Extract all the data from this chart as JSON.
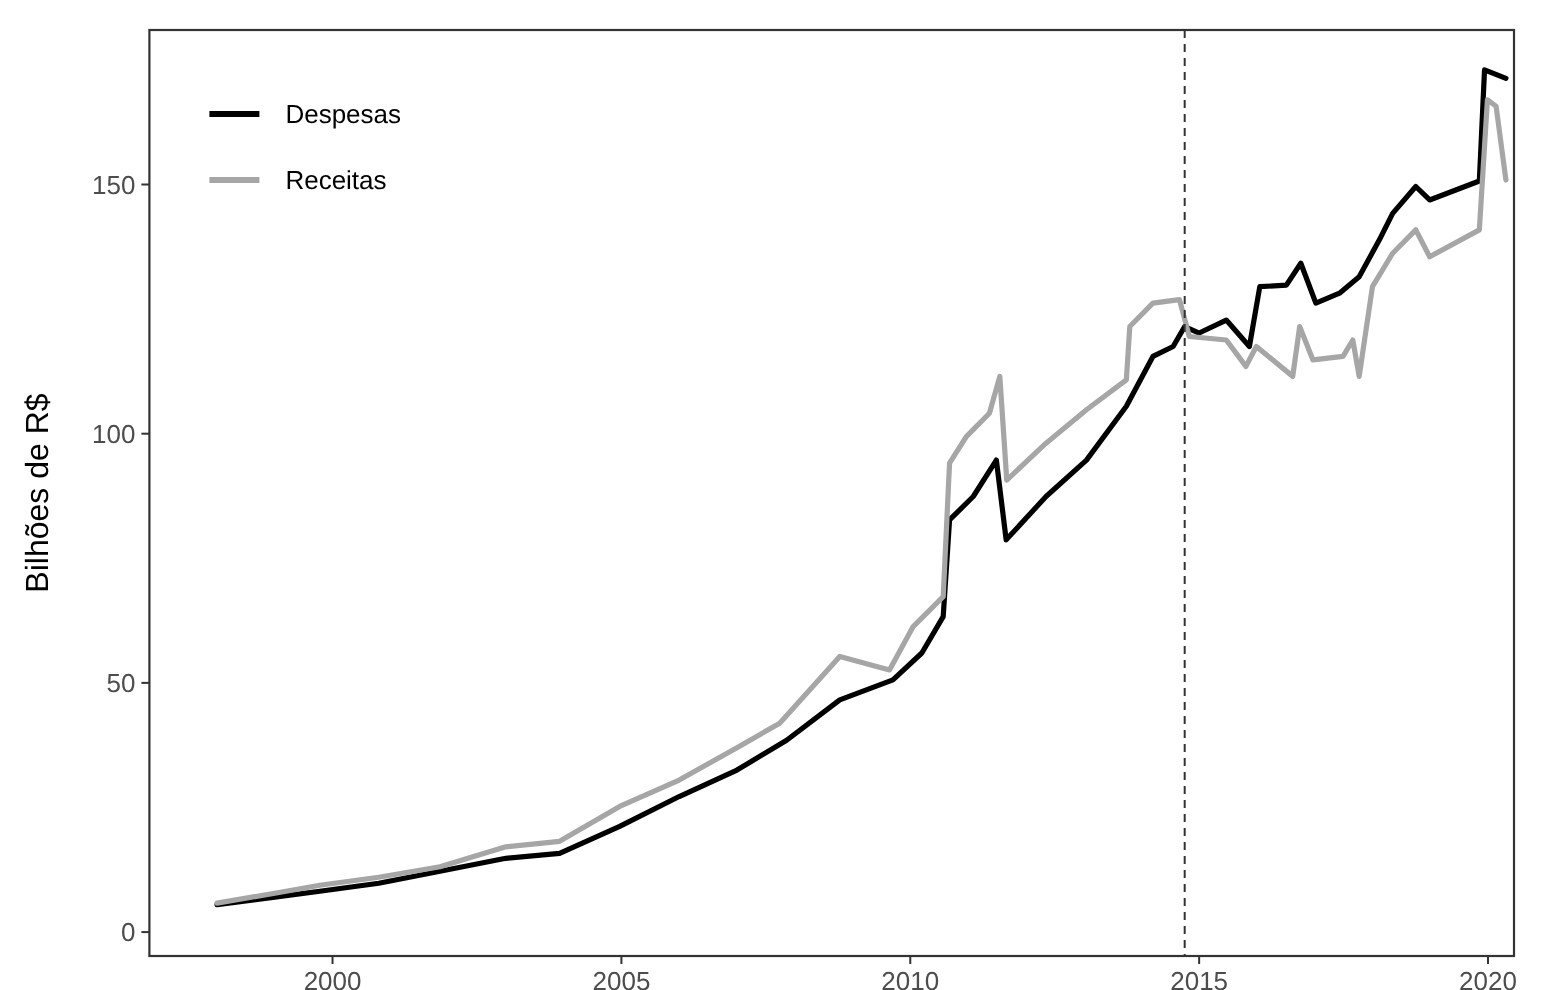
{
  "chart_data": {
    "type": "line",
    "ylabel": "Bilhões de R$",
    "xlim": [
      1996.83,
      2020.45
    ],
    "xticks": [
      2000,
      2005,
      2010,
      2015,
      2020
    ],
    "ylim": [
      -4.8,
      181
    ],
    "yticks": [
      0,
      50,
      100,
      150
    ],
    "grid": false,
    "legend": "top left",
    "line_style": "solid",
    "marker": "none",
    "ref_lines": [
      {
        "axis": "x",
        "value": 2014.75,
        "line_style": "dashed",
        "color": "#333333"
      }
    ],
    "series": [
      {
        "name": "Despesas",
        "color": "#000000",
        "x": [
          1998.0,
          1999.0,
          1999.78,
          2000.8,
          2001.86,
          2003.0,
          2003.93,
          2004.97,
          2006.0,
          2007.0,
          2007.86,
          2008.78,
          2009.7,
          2010.2,
          2010.57,
          2010.68,
          2011.09,
          2011.49,
          2011.66,
          2012.35,
          2013.05,
          2013.74,
          2014.2,
          2014.55,
          2014.75,
          2015.0,
          2015.47,
          2015.87,
          2016.05,
          2016.51,
          2016.76,
          2017.02,
          2017.43,
          2017.77,
          2018.12,
          2018.35,
          2018.75,
          2018.99,
          2019.85,
          2019.94,
          2020.31
        ],
        "values": [
          5.5,
          7.0,
          8.2,
          9.8,
          12.2,
          14.8,
          15.8,
          21.2,
          27.2,
          32.5,
          38.5,
          46.6,
          50.6,
          56,
          63.3,
          82.7,
          87.4,
          94.7,
          78.7,
          87.4,
          94.7,
          105.5,
          115.5,
          117.5,
          121.5,
          120.2,
          122.8,
          117.5,
          129.5,
          129.8,
          134.2,
          126.2,
          128.2,
          131.5,
          138.9,
          144.2,
          149.6,
          146.9,
          150.7,
          173,
          171.3
        ]
      },
      {
        "name": "Receitas",
        "color": "#a6a6a6",
        "x": [
          1998.0,
          1999.0,
          1999.78,
          2000.8,
          2001.86,
          2003.0,
          2003.93,
          2004.97,
          2006.0,
          2007.0,
          2007.74,
          2008.78,
          2009.64,
          2010.05,
          2010.57,
          2010.68,
          2010.97,
          2011.37,
          2011.55,
          2011.67,
          2012.35,
          2013.05,
          2013.74,
          2013.8,
          2014.2,
          2014.66,
          2014.83,
          2015.47,
          2015.81,
          2015.99,
          2016.62,
          2016.74,
          2016.97,
          2017.49,
          2017.66,
          2017.77,
          2018.0,
          2018.35,
          2018.75,
          2018.99,
          2019.85,
          2019.99,
          2020.14,
          2020.31
        ],
        "values": [
          5.8,
          7.8,
          9.4,
          11,
          13.1,
          17.1,
          18.2,
          25.2,
          30.5,
          37,
          41.9,
          55.3,
          52.6,
          61.3,
          67.3,
          94.1,
          99.4,
          104.1,
          111.5,
          90.7,
          98.1,
          104.8,
          110.8,
          121.5,
          126.2,
          126.9,
          119.5,
          118.8,
          113.5,
          117.5,
          111.5,
          121.5,
          114.8,
          115.5,
          118.8,
          111.5,
          129.5,
          136.2,
          140.9,
          135.5,
          140.9,
          167,
          165.7,
          150.9
        ]
      }
    ]
  }
}
